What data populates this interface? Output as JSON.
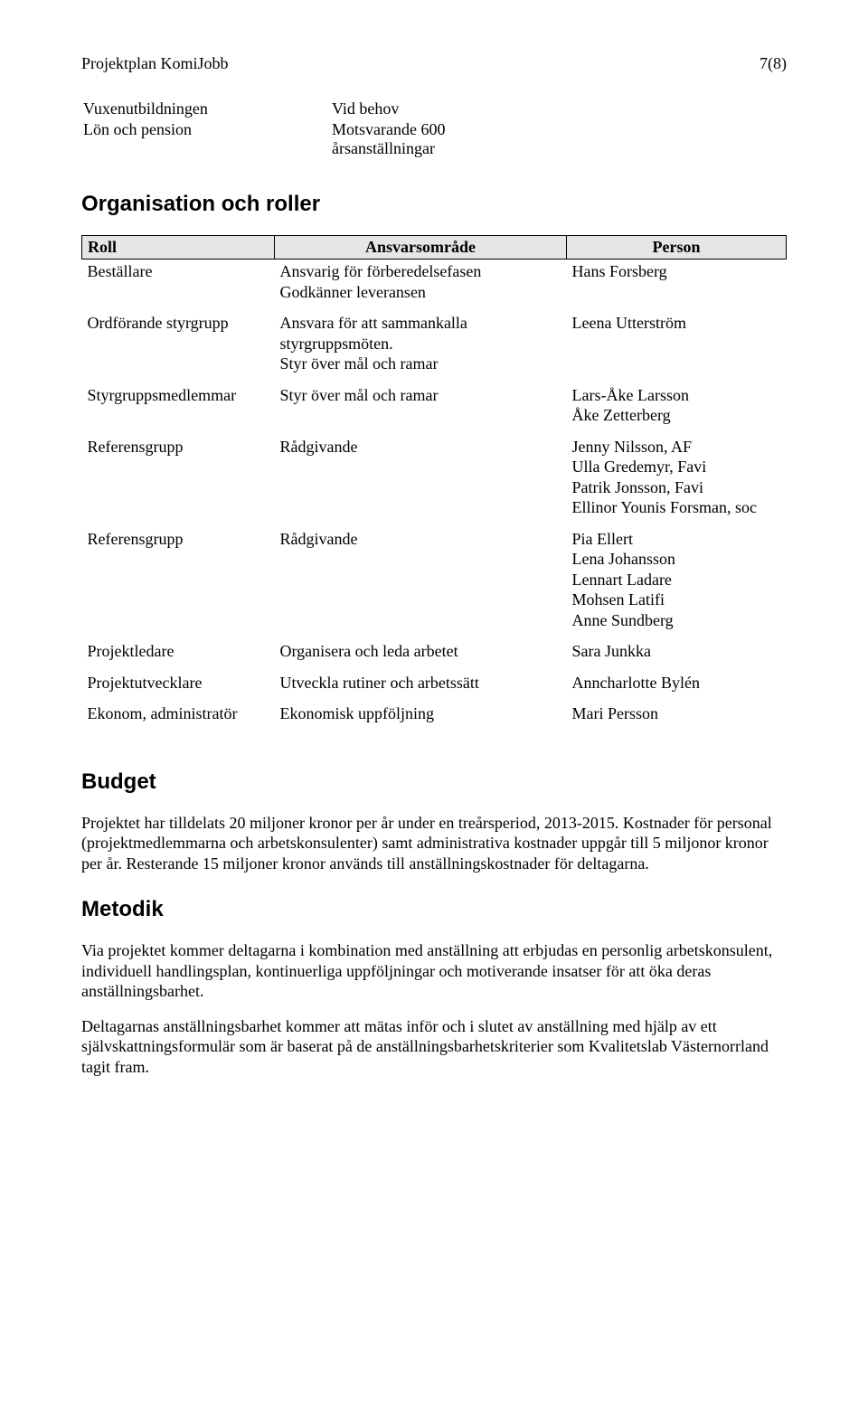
{
  "header": {
    "left": "Projektplan KomiJobb",
    "right": "7(8)"
  },
  "top_table": {
    "rows": [
      {
        "c1": "Vuxenutbildningen",
        "c2": "Vid behov"
      },
      {
        "c1": "Lön och pension",
        "c2": "Motsvarande 600\nårsanställningar"
      }
    ]
  },
  "org_section_title": "Organisation och roller",
  "roles_table": {
    "headers": {
      "roll": "Roll",
      "ansvar": "Ansvarsområde",
      "person": "Person"
    },
    "rows": [
      {
        "roll": "Beställare",
        "ansvar": "Ansvarig för förberedelsefasen\nGodkänner leveransen",
        "person": "Hans Forsberg"
      },
      {
        "roll": "Ordförande styrgrupp",
        "ansvar": "Ansvara för att sammankalla\nstyrgruppsmöten.\nStyr över mål och ramar",
        "person": "Leena Utterström"
      },
      {
        "roll": "Styrgruppsmedlemmar",
        "ansvar": "Styr över mål och ramar",
        "person": "Lars-Åke Larsson\nÅke Zetterberg"
      },
      {
        "roll": "Referensgrupp",
        "ansvar": "Rådgivande",
        "person": "Jenny Nilsson, AF\nUlla Gredemyr, Favi\nPatrik Jonsson, Favi\nEllinor Younis Forsman, soc"
      },
      {
        "roll": "Referensgrupp",
        "ansvar": "Rådgivande",
        "person": "Pia Ellert\nLena Johansson\nLennart Ladare\nMohsen Latifi\nAnne Sundberg"
      },
      {
        "roll": "Projektledare",
        "ansvar": "Organisera och leda arbetet",
        "person": "Sara Junkka"
      },
      {
        "roll": "Projektutvecklare",
        "ansvar": "Utveckla rutiner och arbetssätt",
        "person": "Anncharlotte Bylén"
      },
      {
        "roll": "Ekonom, administratör",
        "ansvar": "Ekonomisk uppföljning",
        "person": "Mari Persson"
      }
    ]
  },
  "budget": {
    "title": "Budget",
    "p1": "Projektet har tilldelats 20 miljoner kronor per år under en treårsperiod, 2013-2015. Kostnader för personal (projektmedlemmarna och arbetskonsulenter) samt administrativa kostnader uppgår till 5 miljonor kronor per år. Resterande 15 miljoner kronor används till anställningskostnader för deltagarna."
  },
  "metodik": {
    "title": "Metodik",
    "p1": "Via projektet kommer deltagarna i kombination med anställning att erbjudas en personlig arbetskonsulent, individuell handlingsplan, kontinuerliga uppföljningar och motiverande insatser för att öka deras anställningsbarhet.",
    "p2": "Deltagarnas anställningsbarhet kommer att mätas inför och i slutet av anställning med hjälp av ett självskattningsformulär som är baserat på de anställningsbarhetskriterier som Kvalitetslab Västernorrland tagit fram."
  }
}
